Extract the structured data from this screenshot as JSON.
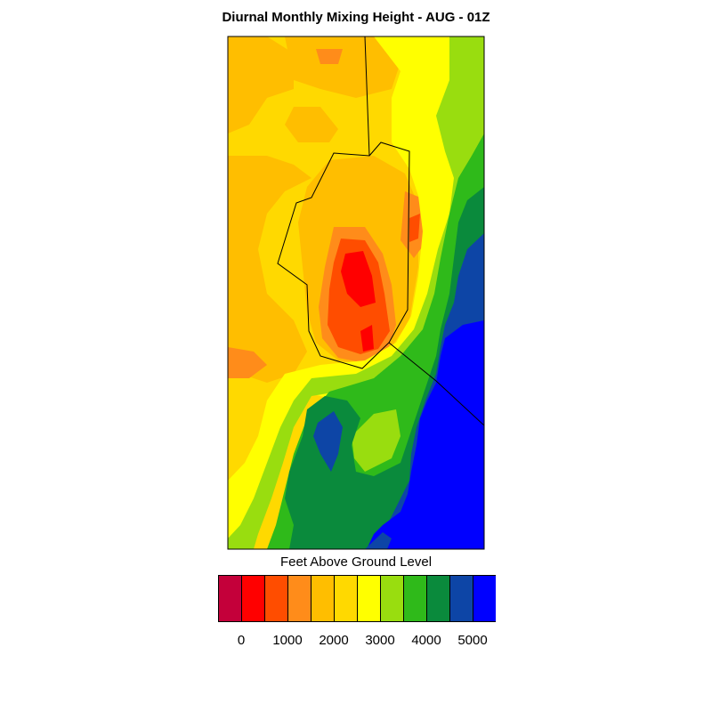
{
  "title": "Diurnal Monthly Mixing Height - AUG - 01Z",
  "legend": {
    "title": "Feet Above Ground Level",
    "ticks": [
      "0",
      "1000",
      "2000",
      "3000",
      "4000",
      "5000"
    ],
    "colors": [
      "#c4003a",
      "#ff0000",
      "#ff4d00",
      "#ff8c1a",
      "#ffbe00",
      "#ffd900",
      "#ffff00",
      "#99dd0f",
      "#2fba1a",
      "#0a8a3c",
      "#0d45a6",
      "#0000ff"
    ]
  },
  "map": {
    "field": "mixing height (ft AGL)",
    "colors": {
      "orange": "#ffbe00",
      "dark_orange": "#ff8c1a",
      "red_orange": "#ff4d00",
      "red": "#ff0000",
      "gold": "#ffd900",
      "yellow": "#ffff00",
      "yellow_green": "#99dd0f",
      "green": "#2fba1a",
      "dark_green": "#0a8a3c",
      "dark_blue": "#0d45a6",
      "blue": "#0000ff",
      "boundary": "#000000"
    }
  }
}
